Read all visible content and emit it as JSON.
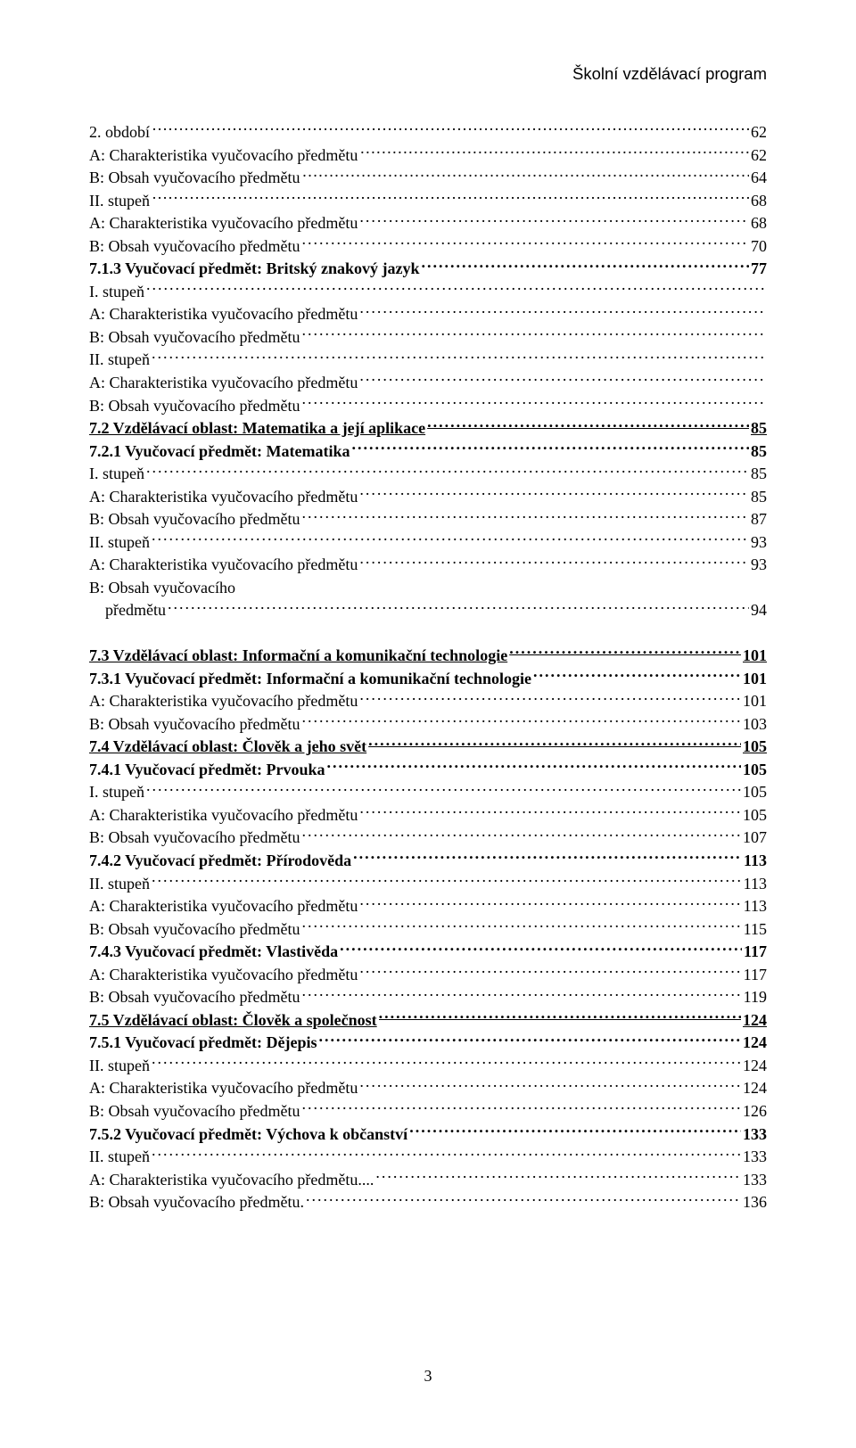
{
  "header_text": "Školní vzdělávací program",
  "page_number": "3",
  "entries": [
    {
      "label": "2. období",
      "page": "62",
      "leader": "ellipsis"
    },
    {
      "label": "A: Charakteristika vyučovacího předmětu",
      "page": "62",
      "leader": "ellipsis"
    },
    {
      "label": "B: Obsah vyučovacího předmětu",
      "page": "64",
      "leader": "ellipsis"
    },
    {
      "label": "II. stupeň",
      "page": "68",
      "leader": "ellipsis"
    },
    {
      "label": "A: Charakteristika vyučovacího předmětu",
      "page": "68",
      "leader": "dots"
    },
    {
      "label": "B: Obsah vyučovacího předmětu",
      "page": "70",
      "leader": "dots"
    },
    {
      "label": "7.1.3 Vyučovací předmět: Britský znakový jazyk",
      "page": "77",
      "leader": "dots",
      "bold": true
    },
    {
      "label": "I. stupeň",
      "page": "",
      "leader": "dots"
    },
    {
      "label": "A: Charakteristika vyučovacího předmětu",
      "page": "",
      "leader": "dots"
    },
    {
      "label": "B: Obsah vyučovacího předmětu",
      "page": "",
      "leader": "dots"
    },
    {
      "label": "II. stupeň",
      "page": "",
      "leader": "dots"
    },
    {
      "label": "A: Charakteristika vyučovacího předmětu",
      "page": "",
      "leader": "dots"
    },
    {
      "label": "B: Obsah vyučovacího předmětu",
      "page": "",
      "leader": "dots"
    },
    {
      "label": "7.2 Vzdělávací oblast: Matematika a její aplikace",
      "page": "85",
      "leader": "dots",
      "bold": true,
      "underline": true
    },
    {
      "label": "7.2.1 Vyučovací předmět: Matematika",
      "page": "85",
      "leader": "dots",
      "bold": true
    },
    {
      "label": "I. stupeň",
      "page": "85",
      "leader": "dots"
    },
    {
      "label": "A: Charakteristika vyučovacího předmětu",
      "page": "85",
      "leader": "dots"
    },
    {
      "label": "B: Obsah vyučovacího předmětu",
      "page": "87",
      "leader": "dots"
    },
    {
      "label": "II. stupeň",
      "page": "93",
      "leader": "dots"
    },
    {
      "label": "A: Charakteristika vyučovacího předmětu",
      "page": "93",
      "leader": "dots"
    },
    {
      "label": "B: Obsah vyučovacího",
      "label2": "předmětu",
      "page": "94",
      "leader": "dots",
      "wrap": true
    },
    {
      "gap": true
    },
    {
      "label": "7.3 Vzdělávací oblast: Informační a komunikační technologie",
      "page": "101",
      "leader": "dots",
      "bold": true,
      "underline": true
    },
    {
      "label": "7.3.1 Vyučovací předmět: Informační a komunikační technologie",
      "page": "101",
      "leader": "dots",
      "bold": true
    },
    {
      "label": "A: Charakteristika vyučovacího předmětu",
      "page": "101",
      "leader": "dots"
    },
    {
      "label": "B: Obsah vyučovacího předmětu",
      "page": "103",
      "leader": "dots"
    },
    {
      "label": "7.4 Vzdělávací oblast: Člověk a jeho svět",
      "page": "105",
      "leader": "dots",
      "bold": true,
      "underline": true
    },
    {
      "label": "7.4.1 Vyučovací předmět: Prvouka",
      "page": "105",
      "leader": "dots",
      "bold": true
    },
    {
      "label": "I. stupeň",
      "page": "105",
      "leader": "dots"
    },
    {
      "label": "A: Charakteristika vyučovacího předmětu",
      "page": "105",
      "leader": "dots"
    },
    {
      "label": "B: Obsah vyučovacího předmětu",
      "page": "107",
      "leader": "dots"
    },
    {
      "label": "7.4.2 Vyučovací předmět: Přírodověda",
      "page": "113",
      "leader": "dots",
      "bold": true
    },
    {
      "label": "II. stupeň",
      "page": "113",
      "leader": "dots"
    },
    {
      "label": "A: Charakteristika vyučovacího předmětu",
      "page": "113",
      "leader": "dots"
    },
    {
      "label": "B: Obsah vyučovacího předmětu",
      "page": "115",
      "leader": "dots"
    },
    {
      "label": "7.4.3 Vyučovací předmět: Vlastivěda",
      "page": "117",
      "leader": "dots",
      "bold": true
    },
    {
      "label": "A: Charakteristika vyučovacího předmětu",
      "page": "117",
      "leader": "dots"
    },
    {
      "label": "B: Obsah vyučovacího předmětu",
      "page": "119",
      "leader": "dots"
    },
    {
      "label": "7.5 Vzdělávací oblast: Člověk a společnost",
      "page": "124",
      "leader": "dots",
      "bold": true,
      "underline": true
    },
    {
      "label": "7.5.1 Vyučovací předmět: Dějepis",
      "page": "124",
      "leader": "dots",
      "bold": true
    },
    {
      "label": "II. stupeň",
      "page": "124",
      "leader": "dots"
    },
    {
      "label": "A: Charakteristika vyučovacího předmětu",
      "page": "124",
      "leader": "dots"
    },
    {
      "label": "B: Obsah vyučovacího předmětu",
      "page": "126",
      "leader": "dots"
    },
    {
      "label": "7.5.2 Vyučovací předmět: Výchova k občanství",
      "page": "133",
      "leader": "dots",
      "bold": true
    },
    {
      "label": "II. stupeň",
      "page": "133",
      "leader": "dots"
    },
    {
      "label": "A: Charakteristika vyučovacího předmětu.... ",
      "page": "133",
      "leader": "dots"
    },
    {
      "label": "B: Obsah vyučovacího předmětu.",
      "page": "136",
      "leader": "dots"
    }
  ]
}
